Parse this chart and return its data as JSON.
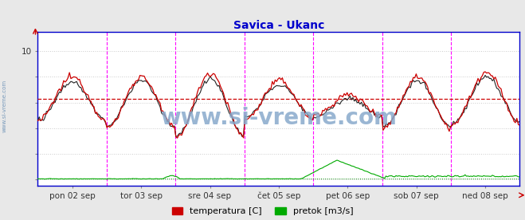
{
  "title": "Savica - Ukanc",
  "title_color": "#0000cc",
  "title_fontsize": 10,
  "bg_color": "#e8e8e8",
  "plot_bg_color": "#ffffff",
  "border_color": "#0000cc",
  "watermark": "www.si-vreme.com",
  "ylim": [
    -0.5,
    11.5
  ],
  "ytick_val": 10,
  "ytick_pos": 10,
  "grid_color": "#cccccc",
  "avg_line_color": "#cc0000",
  "avg_value": 6.3,
  "vline_color": "#ff00ff",
  "vline_positions": [
    0.142857,
    0.285714,
    0.428571,
    0.571429,
    0.714286,
    0.857143
  ],
  "x_tick_labels": [
    "pon 02 sep",
    "tor 03 sep",
    "sre 04 sep",
    "čet 05 sep",
    "pet 06 sep",
    "sob 07 sep",
    "ned 08 sep"
  ],
  "x_tick_positions": [
    0.071428,
    0.214285,
    0.357142,
    0.499999,
    0.642856,
    0.785713,
    0.92857
  ],
  "legend_labels": [
    "temperatura [C]",
    "pretok [m3/s]"
  ],
  "legend_colors": [
    "#cc0000",
    "#00aa00"
  ],
  "num_points": 336,
  "left_margin_text": "www.si-vreme.com",
  "left_margin_color": "#7799bb",
  "watermark_color": "#88aacc",
  "watermark_size": 20
}
